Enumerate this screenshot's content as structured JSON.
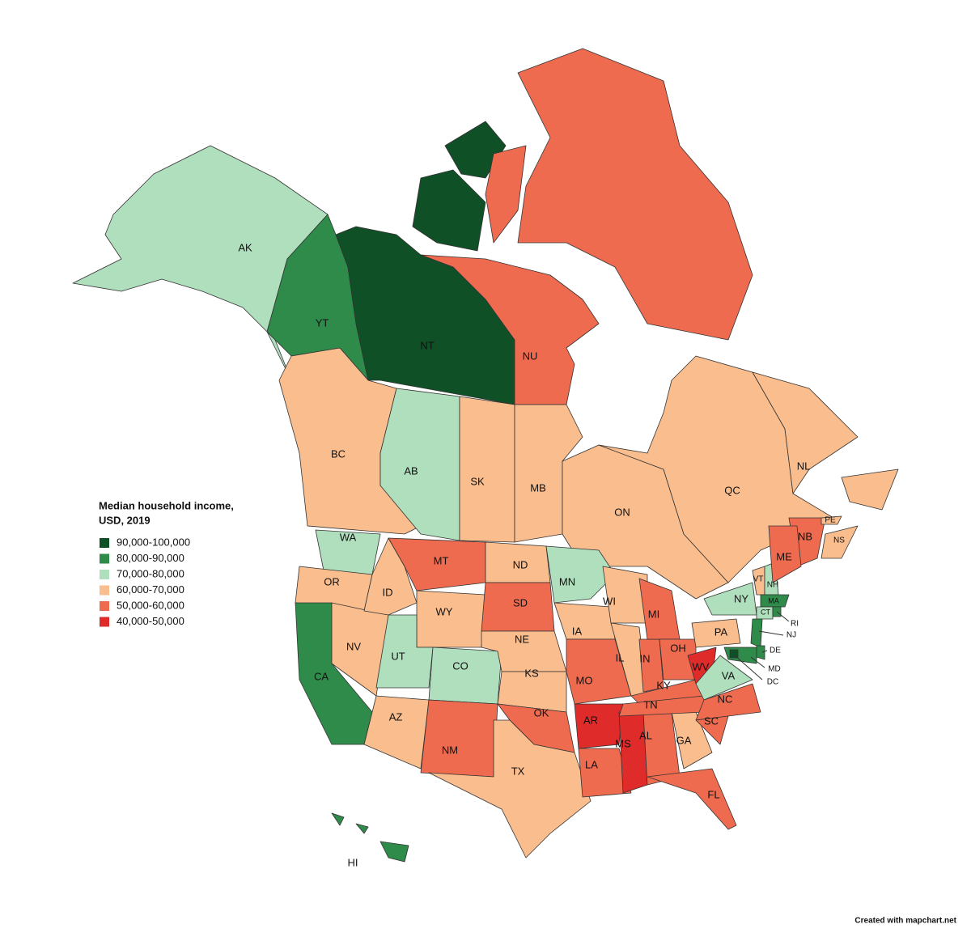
{
  "legend": {
    "title": [
      "Median household income,",
      "USD, 2019"
    ],
    "items": [
      {
        "label": "90,000-100,000",
        "color": "#0f5027"
      },
      {
        "label": "80,000-90,000",
        "color": "#2e8b4a"
      },
      {
        "label": "70,000-80,000",
        "color": "#b0dfbd"
      },
      {
        "label": "60,000-70,000",
        "color": "#f9bd8e"
      },
      {
        "label": "50,000-60,000",
        "color": "#ef6b50"
      },
      {
        "label": "40,000-50,000",
        "color": "#e02b2b"
      }
    ]
  },
  "regions": [
    {
      "label": "AK",
      "color": "#b0dfbd"
    },
    {
      "label": "YT",
      "color": "#2e8b4a"
    },
    {
      "label": "NT",
      "color": "#0f5027"
    },
    {
      "label": "NU",
      "color": "#ef6b50"
    },
    {
      "label": "BC",
      "color": "#f9bd8e"
    },
    {
      "label": "AB",
      "color": "#b0dfbd"
    },
    {
      "label": "SK",
      "color": "#f9bd8e"
    },
    {
      "label": "MB",
      "color": "#f9bd8e"
    },
    {
      "label": "ON",
      "color": "#f9bd8e"
    },
    {
      "label": "QC",
      "color": "#f9bd8e"
    },
    {
      "label": "NL",
      "color": "#f9bd8e"
    },
    {
      "label": "NB",
      "color": "#ef6b50"
    },
    {
      "label": "NS",
      "color": "#f9bd8e"
    },
    {
      "label": "PE",
      "color": "#f9bd8e"
    },
    {
      "label": "WA",
      "color": "#b0dfbd"
    },
    {
      "label": "OR",
      "color": "#f9bd8e"
    },
    {
      "label": "CA",
      "color": "#2e8b4a"
    },
    {
      "label": "NV",
      "color": "#f9bd8e"
    },
    {
      "label": "ID",
      "color": "#f9bd8e"
    },
    {
      "label": "MT",
      "color": "#ef6b50"
    },
    {
      "label": "WY",
      "color": "#f9bd8e"
    },
    {
      "label": "UT",
      "color": "#b0dfbd"
    },
    {
      "label": "CO",
      "color": "#b0dfbd"
    },
    {
      "label": "AZ",
      "color": "#f9bd8e"
    },
    {
      "label": "NM",
      "color": "#ef6b50"
    },
    {
      "label": "ND",
      "color": "#f9bd8e"
    },
    {
      "label": "SD",
      "color": "#ef6b50"
    },
    {
      "label": "NE",
      "color": "#f9bd8e"
    },
    {
      "label": "KS",
      "color": "#f9bd8e"
    },
    {
      "label": "OK",
      "color": "#ef6b50"
    },
    {
      "label": "TX",
      "color": "#f9bd8e"
    },
    {
      "label": "MN",
      "color": "#b0dfbd"
    },
    {
      "label": "IA",
      "color": "#f9bd8e"
    },
    {
      "label": "MO",
      "color": "#ef6b50"
    },
    {
      "label": "AR",
      "color": "#e02b2b"
    },
    {
      "label": "LA",
      "color": "#ef6b50"
    },
    {
      "label": "MS",
      "color": "#e02b2b"
    },
    {
      "label": "AL",
      "color": "#ef6b50"
    },
    {
      "label": "GA",
      "color": "#f9bd8e"
    },
    {
      "label": "FL",
      "color": "#ef6b50"
    },
    {
      "label": "WI",
      "color": "#f9bd8e"
    },
    {
      "label": "IL",
      "color": "#f9bd8e"
    },
    {
      "label": "IN",
      "color": "#ef6b50"
    },
    {
      "label": "MI",
      "color": "#ef6b50"
    },
    {
      "label": "OH",
      "color": "#ef6b50"
    },
    {
      "label": "KY",
      "color": "#ef6b50"
    },
    {
      "label": "TN",
      "color": "#ef6b50"
    },
    {
      "label": "WV",
      "color": "#e02b2b"
    },
    {
      "label": "VA",
      "color": "#b0dfbd"
    },
    {
      "label": "NC",
      "color": "#ef6b50"
    },
    {
      "label": "SC",
      "color": "#ef6b50"
    },
    {
      "label": "PA",
      "color": "#f9bd8e"
    },
    {
      "label": "NY",
      "color": "#b0dfbd"
    },
    {
      "label": "VT",
      "color": "#f9bd8e"
    },
    {
      "label": "NH",
      "color": "#b0dfbd"
    },
    {
      "label": "ME",
      "color": "#ef6b50"
    },
    {
      "label": "MA",
      "color": "#2e8b4a"
    },
    {
      "label": "CT",
      "color": "#b0dfbd"
    },
    {
      "label": "RI",
      "color": "#2e8b4a"
    },
    {
      "label": "NJ",
      "color": "#2e8b4a"
    },
    {
      "label": "DE",
      "color": "#2e8b4a"
    },
    {
      "label": "MD",
      "color": "#2e8b4a"
    },
    {
      "label": "DC",
      "color": "#0f5027"
    },
    {
      "label": "HI",
      "color": "#2e8b4a"
    }
  ],
  "credit": "Created with mapchart.net"
}
